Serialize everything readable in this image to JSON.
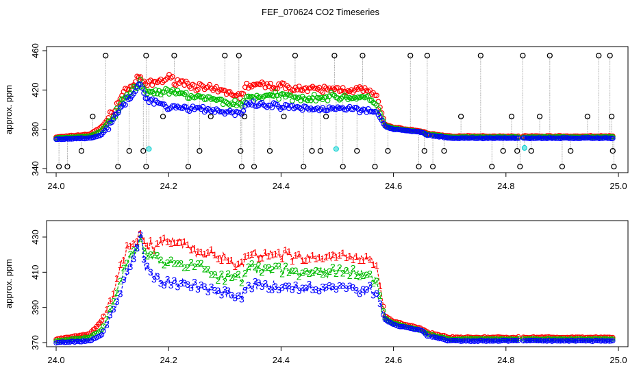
{
  "figure": {
    "title": "FEF_070624  CO2 Timeseries"
  },
  "chart_data": [
    {
      "type": "scatter",
      "panel": "top",
      "xlabel": "",
      "ylabel": "approx. ppm",
      "xlim": [
        24.0,
        25.0
      ],
      "ylim": [
        340,
        460
      ],
      "xticks": [
        24.0,
        24.2,
        24.4,
        24.6,
        24.8,
        25.0
      ],
      "xtick_labels": [
        "24.0",
        "24.2",
        "24.4",
        "24.6",
        "24.8",
        "25.0"
      ],
      "yticks": [
        340,
        380,
        420,
        460
      ],
      "ytick_labels": [
        "340",
        "380",
        "420",
        "460"
      ],
      "series_colors": {
        "1": "#ff0000",
        "2": "#00bb00",
        "3": "#0000ff",
        "cyan": "#00cccc",
        "black": "#000000",
        "line": "#999999"
      },
      "profile_x": [
        24.0,
        24.06,
        24.08,
        24.1,
        24.12,
        24.15,
        24.16,
        24.2,
        24.26,
        24.3,
        24.33,
        24.34,
        24.4,
        24.45,
        24.5,
        24.55,
        24.57,
        24.585,
        24.6,
        24.65,
        24.66,
        24.7,
        25.0
      ],
      "series": [
        {
          "name": "1",
          "marker": "circle",
          "values": [
            372,
            375,
            382,
            396,
            418,
            432,
            425,
            432,
            422,
            418,
            414,
            425,
            424,
            420,
            421,
            420,
            414,
            385,
            382,
            378,
            376,
            373,
            373
          ]
        },
        {
          "name": "2",
          "marker": "circle",
          "values": [
            371,
            373,
            378,
            392,
            410,
            428,
            418,
            418,
            412,
            408,
            405,
            413,
            414,
            412,
            413,
            412,
            405,
            384,
            381,
            377,
            375,
            372,
            372
          ]
        },
        {
          "name": "3",
          "marker": "circle",
          "values": [
            370,
            371,
            374,
            388,
            405,
            425,
            412,
            403,
            401,
            398,
            396,
            405,
            403,
            400,
            402,
            400,
            398,
            383,
            380,
            377,
            374,
            371,
            371
          ]
        }
      ],
      "outliers_black": [
        {
          "x": 24.005,
          "y": 342
        },
        {
          "x": 24.02,
          "y": 342
        },
        {
          "x": 24.045,
          "y": 358
        },
        {
          "x": 24.065,
          "y": 393
        },
        {
          "x": 24.088,
          "y": 455
        },
        {
          "x": 24.11,
          "y": 342
        },
        {
          "x": 24.13,
          "y": 358
        },
        {
          "x": 24.155,
          "y": 358
        },
        {
          "x": 24.16,
          "y": 455
        },
        {
          "x": 24.16,
          "y": 342
        },
        {
          "x": 24.19,
          "y": 393
        },
        {
          "x": 24.21,
          "y": 455
        },
        {
          "x": 24.235,
          "y": 342
        },
        {
          "x": 24.255,
          "y": 358
        },
        {
          "x": 24.275,
          "y": 393
        },
        {
          "x": 24.3,
          "y": 455
        },
        {
          "x": 24.325,
          "y": 455
        },
        {
          "x": 24.328,
          "y": 358
        },
        {
          "x": 24.33,
          "y": 342
        },
        {
          "x": 24.335,
          "y": 393
        },
        {
          "x": 24.352,
          "y": 342
        },
        {
          "x": 24.38,
          "y": 358
        },
        {
          "x": 24.405,
          "y": 393
        },
        {
          "x": 24.425,
          "y": 455
        },
        {
          "x": 24.44,
          "y": 342
        },
        {
          "x": 24.455,
          "y": 358
        },
        {
          "x": 24.47,
          "y": 358
        },
        {
          "x": 24.48,
          "y": 393
        },
        {
          "x": 24.495,
          "y": 455
        },
        {
          "x": 24.51,
          "y": 342
        },
        {
          "x": 24.535,
          "y": 358
        },
        {
          "x": 24.545,
          "y": 455
        },
        {
          "x": 24.567,
          "y": 342
        },
        {
          "x": 24.59,
          "y": 358
        },
        {
          "x": 24.63,
          "y": 455
        },
        {
          "x": 24.645,
          "y": 342
        },
        {
          "x": 24.655,
          "y": 358
        },
        {
          "x": 24.66,
          "y": 455
        },
        {
          "x": 24.67,
          "y": 342
        },
        {
          "x": 24.69,
          "y": 358
        },
        {
          "x": 24.72,
          "y": 393
        },
        {
          "x": 24.755,
          "y": 455
        },
        {
          "x": 24.775,
          "y": 342
        },
        {
          "x": 24.795,
          "y": 358
        },
        {
          "x": 24.81,
          "y": 393
        },
        {
          "x": 24.82,
          "y": 358
        },
        {
          "x": 24.825,
          "y": 342
        },
        {
          "x": 24.83,
          "y": 455
        },
        {
          "x": 24.845,
          "y": 358
        },
        {
          "x": 24.86,
          "y": 393
        },
        {
          "x": 24.878,
          "y": 455
        },
        {
          "x": 24.9,
          "y": 342
        },
        {
          "x": 24.915,
          "y": 358
        },
        {
          "x": 24.945,
          "y": 393
        },
        {
          "x": 24.965,
          "y": 455
        },
        {
          "x": 24.985,
          "y": 455
        },
        {
          "x": 24.988,
          "y": 393
        },
        {
          "x": 24.99,
          "y": 358
        },
        {
          "x": 24.992,
          "y": 342
        }
      ],
      "outliers_cyan": [
        {
          "x": 24.165,
          "y": 360
        },
        {
          "x": 24.498,
          "y": 360
        },
        {
          "x": 24.833,
          "y": 361
        }
      ],
      "gaps": [
        [
          24.665,
          24.668
        ],
        [
          24.823,
          24.828
        ]
      ]
    },
    {
      "type": "line",
      "panel": "bottom",
      "xlabel": "",
      "ylabel": "approx. ppm",
      "xlim": [
        24.0,
        25.0
      ],
      "ylim": [
        370,
        437
      ],
      "xticks": [
        24.0,
        24.2,
        24.4,
        24.6,
        24.8,
        25.0
      ],
      "xtick_labels": [
        "24.0",
        "24.2",
        "24.4",
        "24.6",
        "24.8",
        "25.0"
      ],
      "yticks": [
        370,
        390,
        410,
        430
      ],
      "ytick_labels": [
        "370",
        "390",
        "410",
        "430"
      ],
      "series": [
        {
          "name": "1",
          "marker_text": "1",
          "color": "#ff0000",
          "values": [
            372,
            375,
            382,
            396,
            420,
            432,
            425,
            428,
            422,
            418,
            414,
            420,
            420,
            418,
            419,
            418,
            414,
            385,
            382,
            378,
            376,
            373,
            373
          ]
        },
        {
          "name": "2",
          "marker_text": "2",
          "color": "#00bb00",
          "values": [
            371,
            373,
            377,
            390,
            412,
            428,
            418,
            416,
            412,
            408,
            405,
            411,
            412,
            410,
            411,
            410,
            405,
            384,
            381,
            377,
            375,
            372,
            372
          ]
        },
        {
          "name": "3",
          "marker_text": "3",
          "color": "#0000ff",
          "values": [
            370,
            371,
            374,
            386,
            405,
            430,
            410,
            404,
            401,
            398,
            396,
            403,
            402,
            400,
            401,
            400,
            398,
            383,
            380,
            377,
            374,
            371,
            371
          ]
        }
      ],
      "point_marker_after_x": 24.58,
      "gaps": [
        [
          24.665,
          24.668
        ],
        [
          24.823,
          24.828
        ]
      ]
    }
  ]
}
